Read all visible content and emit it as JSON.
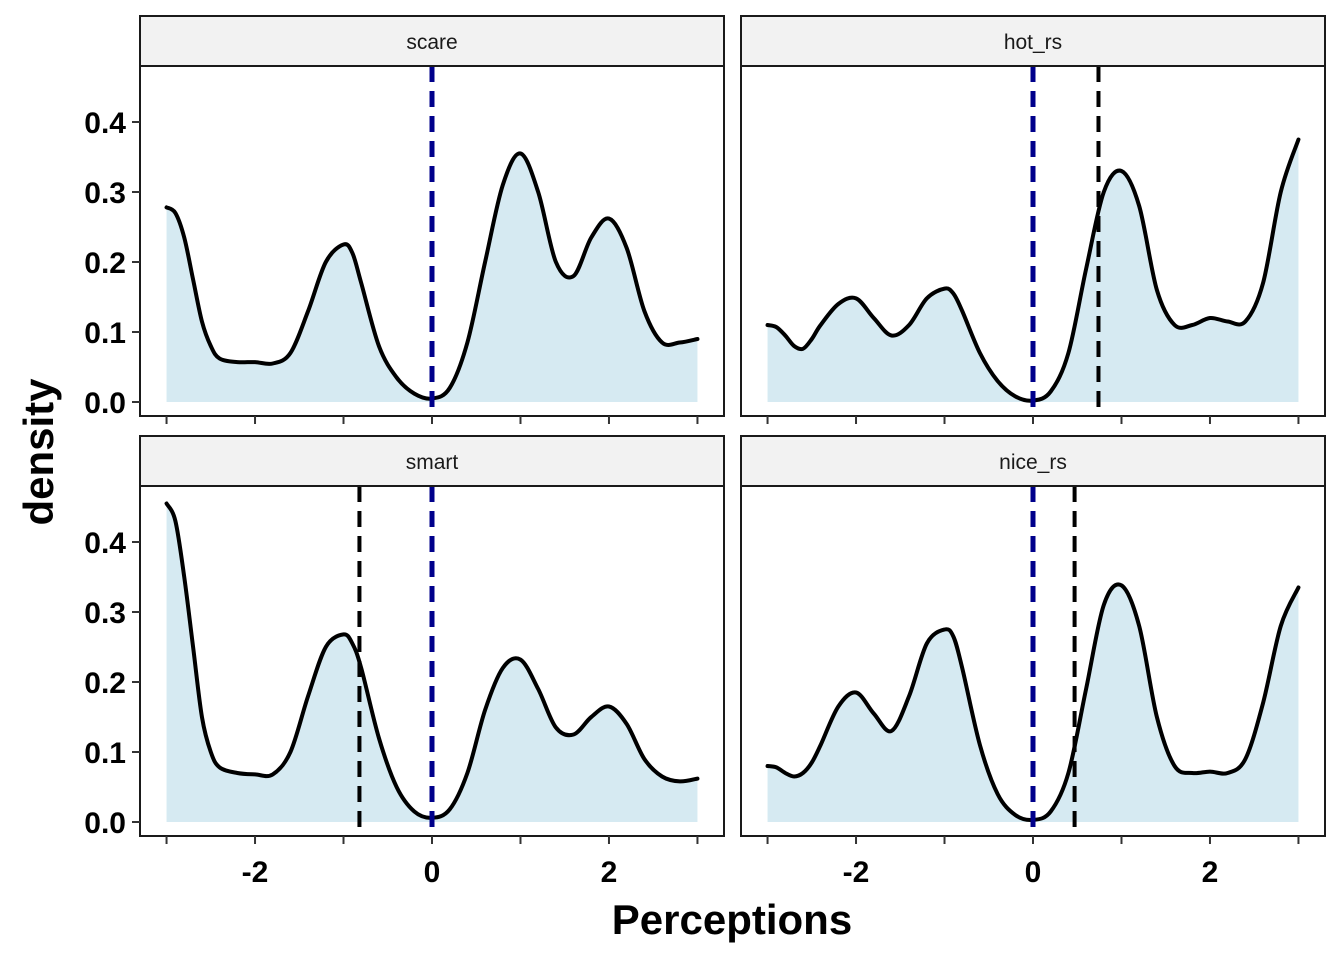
{
  "chart_data": {
    "type": "area",
    "xlabel": "Perceptions",
    "ylabel": "density",
    "xlim": [
      -3.3,
      3.3
    ],
    "ylim": [
      -0.02,
      0.48
    ],
    "x_ticks": [
      -2,
      0,
      2
    ],
    "x_tick_labels": [
      "-2",
      "0",
      "2"
    ],
    "y_ticks": [
      0.0,
      0.1,
      0.2,
      0.3,
      0.4
    ],
    "y_tick_labels": [
      "0.0",
      "0.1",
      "0.2",
      "0.3",
      "0.4"
    ],
    "grid": false,
    "colors": {
      "fill": "#d6eaf2",
      "line": "#000000",
      "reference_line": "#00008b",
      "mean_line": "#000000",
      "strip_bg": "#f2f2f2"
    },
    "panels": [
      {
        "label": "scare",
        "mean": 0.0,
        "reference": 0.0,
        "x": [
          -3.0,
          -2.9,
          -2.8,
          -2.7,
          -2.6,
          -2.5,
          -2.4,
          -2.2,
          -2.0,
          -1.8,
          -1.6,
          -1.4,
          -1.2,
          -1.0,
          -0.9,
          -0.8,
          -0.6,
          -0.4,
          -0.2,
          0.0,
          0.2,
          0.4,
          0.6,
          0.8,
          1.0,
          1.2,
          1.4,
          1.6,
          1.8,
          2.0,
          2.2,
          2.4,
          2.6,
          2.8,
          3.0
        ],
        "y": [
          0.278,
          0.27,
          0.235,
          0.175,
          0.115,
          0.08,
          0.062,
          0.057,
          0.057,
          0.055,
          0.07,
          0.13,
          0.2,
          0.225,
          0.213,
          0.17,
          0.08,
          0.035,
          0.012,
          0.005,
          0.02,
          0.085,
          0.2,
          0.31,
          0.355,
          0.3,
          0.2,
          0.18,
          0.235,
          0.262,
          0.22,
          0.13,
          0.085,
          0.085,
          0.09
        ]
      },
      {
        "label": "hot_rs",
        "mean": 0.74,
        "reference": 0.0,
        "x": [
          -3.0,
          -2.9,
          -2.8,
          -2.7,
          -2.6,
          -2.5,
          -2.4,
          -2.2,
          -2.0,
          -1.8,
          -1.6,
          -1.4,
          -1.2,
          -1.0,
          -0.9,
          -0.8,
          -0.6,
          -0.4,
          -0.2,
          0.0,
          0.2,
          0.4,
          0.6,
          0.8,
          1.0,
          1.2,
          1.4,
          1.6,
          1.8,
          2.0,
          2.2,
          2.4,
          2.6,
          2.8,
          3.0
        ],
        "y": [
          0.11,
          0.107,
          0.095,
          0.08,
          0.076,
          0.09,
          0.11,
          0.14,
          0.148,
          0.12,
          0.095,
          0.11,
          0.148,
          0.162,
          0.155,
          0.13,
          0.07,
          0.03,
          0.008,
          0.002,
          0.015,
          0.07,
          0.19,
          0.3,
          0.33,
          0.28,
          0.16,
          0.11,
          0.11,
          0.12,
          0.115,
          0.115,
          0.17,
          0.3,
          0.375
        ]
      },
      {
        "label": "smart",
        "mean": -0.82,
        "reference": 0.0,
        "x": [
          -3.0,
          -2.9,
          -2.8,
          -2.7,
          -2.6,
          -2.5,
          -2.4,
          -2.2,
          -2.0,
          -1.8,
          -1.6,
          -1.4,
          -1.2,
          -1.0,
          -0.9,
          -0.8,
          -0.6,
          -0.4,
          -0.2,
          0.0,
          0.2,
          0.4,
          0.6,
          0.8,
          1.0,
          1.2,
          1.4,
          1.6,
          1.8,
          2.0,
          2.2,
          2.4,
          2.6,
          2.8,
          3.0
        ],
        "y": [
          0.455,
          0.43,
          0.35,
          0.25,
          0.15,
          0.1,
          0.078,
          0.07,
          0.068,
          0.068,
          0.1,
          0.18,
          0.25,
          0.268,
          0.255,
          0.22,
          0.12,
          0.05,
          0.015,
          0.006,
          0.018,
          0.07,
          0.16,
          0.22,
          0.232,
          0.19,
          0.135,
          0.125,
          0.15,
          0.165,
          0.14,
          0.09,
          0.065,
          0.058,
          0.062
        ]
      },
      {
        "label": "nice_rs",
        "mean": 0.47,
        "reference": 0.0,
        "x": [
          -3.0,
          -2.9,
          -2.8,
          -2.7,
          -2.6,
          -2.5,
          -2.4,
          -2.2,
          -2.0,
          -1.8,
          -1.6,
          -1.4,
          -1.2,
          -1.0,
          -0.9,
          -0.8,
          -0.6,
          -0.4,
          -0.2,
          0.0,
          0.2,
          0.4,
          0.6,
          0.8,
          1.0,
          1.2,
          1.4,
          1.6,
          1.8,
          2.0,
          2.2,
          2.4,
          2.6,
          2.8,
          3.0
        ],
        "y": [
          0.08,
          0.078,
          0.07,
          0.065,
          0.07,
          0.085,
          0.11,
          0.165,
          0.185,
          0.155,
          0.13,
          0.18,
          0.255,
          0.275,
          0.265,
          0.22,
          0.11,
          0.04,
          0.01,
          0.003,
          0.015,
          0.07,
          0.19,
          0.31,
          0.338,
          0.28,
          0.15,
          0.08,
          0.07,
          0.072,
          0.07,
          0.09,
          0.17,
          0.28,
          0.335
        ]
      }
    ]
  }
}
